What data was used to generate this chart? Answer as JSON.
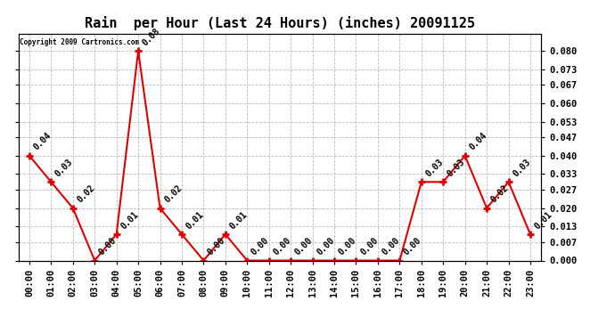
{
  "title": "Rain  per Hour (Last 24 Hours) (inches) 20091125",
  "copyright_text": "Copyright 2009 Cartronics.com",
  "hours": [
    "00:00",
    "01:00",
    "02:00",
    "03:00",
    "04:00",
    "05:00",
    "06:00",
    "07:00",
    "08:00",
    "09:00",
    "10:00",
    "11:00",
    "12:00",
    "13:00",
    "14:00",
    "15:00",
    "16:00",
    "17:00",
    "18:00",
    "19:00",
    "20:00",
    "21:00",
    "22:00",
    "23:00"
  ],
  "values": [
    0.04,
    0.03,
    0.02,
    0.0,
    0.01,
    0.08,
    0.02,
    0.01,
    0.0,
    0.01,
    0.0,
    0.0,
    0.0,
    0.0,
    0.0,
    0.0,
    0.0,
    0.0,
    0.03,
    0.03,
    0.04,
    0.02,
    0.03,
    0.01
  ],
  "line_color": "#dd0000",
  "marker_color": "#dd0000",
  "background_color": "#ffffff",
  "grid_color": "#bbbbbb",
  "title_fontsize": 11,
  "tick_fontsize": 7.5,
  "annotation_fontsize": 7,
  "ylim": [
    0.0,
    0.0867
  ],
  "yticks": [
    0.0,
    0.007,
    0.013,
    0.02,
    0.027,
    0.033,
    0.04,
    0.047,
    0.053,
    0.06,
    0.067,
    0.073,
    0.08
  ]
}
